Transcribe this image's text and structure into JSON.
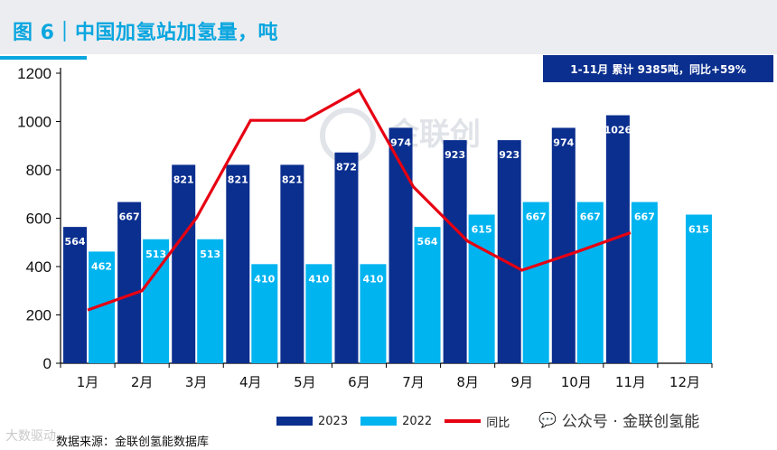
{
  "header": {
    "title": "图 6｜中国加氢站加氢量，吨",
    "summary": "1-11月 累计 9385吨，同比+59%"
  },
  "legend": {
    "series1": "2023",
    "series2": "2022",
    "line": "同比"
  },
  "footer": {
    "source": "数据来源：金联创氢能数据库",
    "brand": "公众号 · 金联创氢能",
    "wechat_icon": "wechat-icon",
    "corner_watermark": "大数驱动"
  },
  "watermark": {
    "text": "金联创"
  },
  "colors": {
    "series2023": "#0b2f8f",
    "series2022": "#00b4f0",
    "line": "#e60012",
    "title": "#0aa6df",
    "summary_bg": "#0b2f8f"
  },
  "chart_data": {
    "type": "bar",
    "categories": [
      "1月",
      "2月",
      "3月",
      "4月",
      "5月",
      "6月",
      "7月",
      "8月",
      "9月",
      "10月",
      "11月",
      "12月"
    ],
    "series": [
      {
        "name": "2023",
        "values": [
          564,
          667,
          821,
          821,
          821,
          872,
          974,
          923,
          923,
          974,
          1026,
          null
        ]
      },
      {
        "name": "2022",
        "values": [
          462,
          513,
          513,
          410,
          410,
          410,
          564,
          615,
          667,
          667,
          667,
          615
        ]
      }
    ],
    "line_series": {
      "name": "同比",
      "values_on_left_axis": [
        220,
        300,
        600,
        1005,
        1005,
        1130,
        730,
        505,
        385,
        460,
        540
      ]
    },
    "ylim": [
      0,
      1200
    ],
    "yticks": [
      0,
      200,
      400,
      600,
      800,
      1000,
      1200
    ],
    "legend_position": "bottom"
  }
}
